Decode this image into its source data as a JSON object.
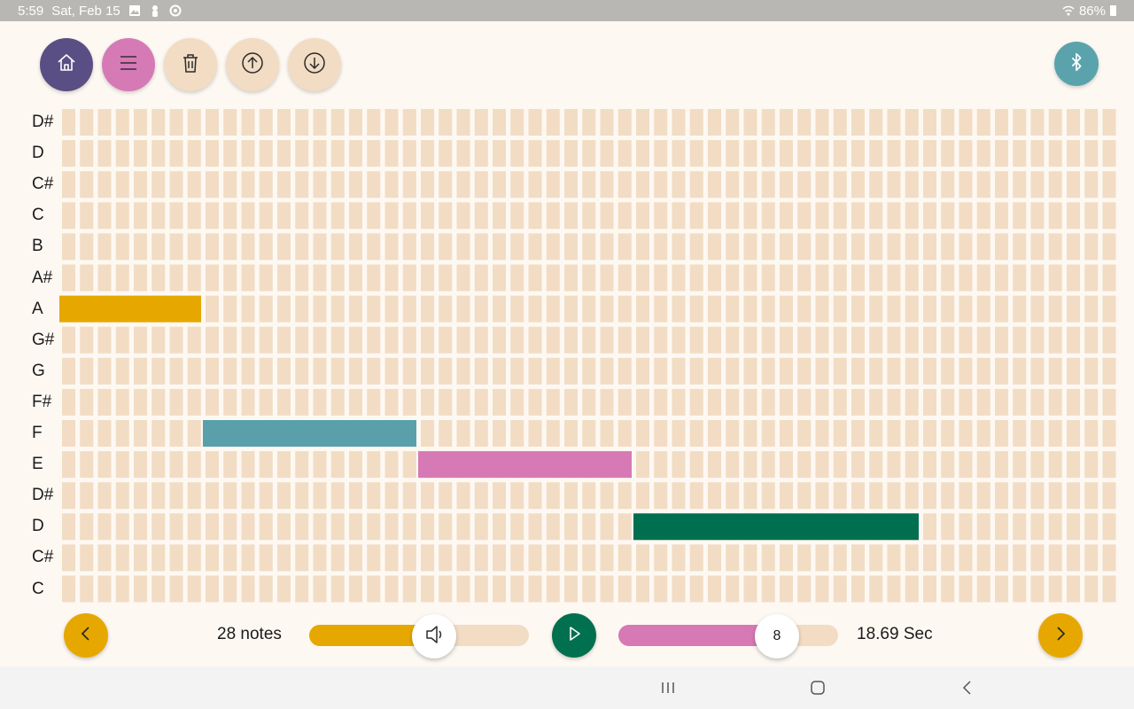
{
  "status_bar": {
    "time": "5:59",
    "date": "Sat, Feb 15",
    "battery": "86%",
    "icons": [
      "gallery-icon",
      "person-icon",
      "sync-icon",
      "wifi-icon",
      "battery-icon"
    ]
  },
  "toolbar": {
    "buttons": [
      {
        "name": "home-button",
        "icon": "home-icon",
        "color": "#594f85"
      },
      {
        "name": "menu-button",
        "icon": "menu-icon",
        "color": "#d67ab6"
      },
      {
        "name": "delete-button",
        "icon": "trash-icon",
        "color": "#f2dcc4"
      },
      {
        "name": "upload-button",
        "icon": "upload-icon",
        "color": "#f2dcc4"
      },
      {
        "name": "download-button",
        "icon": "download-icon",
        "color": "#f2dcc4"
      }
    ],
    "bluetooth": {
      "name": "bluetooth-button",
      "icon": "bluetooth-icon",
      "color": "#5aa3ad"
    }
  },
  "grid": {
    "rows": [
      "D#",
      "D",
      "C#",
      "C",
      "B",
      "A#",
      "A",
      "G#",
      "G",
      "F#",
      "F",
      "E",
      "D#",
      "D",
      "C#",
      "C"
    ],
    "columns": 59,
    "cell_color": "#f2dcc4",
    "notes": [
      {
        "row": "A",
        "row_index": 6,
        "start_col": 0,
        "length": 8,
        "color": "#e6a800"
      },
      {
        "row": "F",
        "row_index": 10,
        "start_col": 8,
        "length": 12,
        "color": "#5aa0ab"
      },
      {
        "row": "E",
        "row_index": 11,
        "start_col": 20,
        "length": 12,
        "color": "#d679b5"
      },
      {
        "row": "D",
        "row_index": 13,
        "start_col": 32,
        "length": 16,
        "color": "#006f50"
      }
    ]
  },
  "controls": {
    "prev_icon": "chevron-left-icon",
    "next_icon": "chevron-right-icon",
    "notes_count": "28 notes",
    "volume": {
      "level": 0.57,
      "color": "#e6a800",
      "icon": "speaker-icon"
    },
    "play": {
      "icon": "play-icon",
      "color": "#00704f"
    },
    "tempo": {
      "value": "8",
      "level": 0.72,
      "color": "#d679b5"
    },
    "duration": "18.69 Sec",
    "accent_yellow": "#e6a800"
  },
  "nav_bar": {
    "icons": [
      "recent-apps-icon",
      "home-nav-icon",
      "back-icon"
    ]
  }
}
